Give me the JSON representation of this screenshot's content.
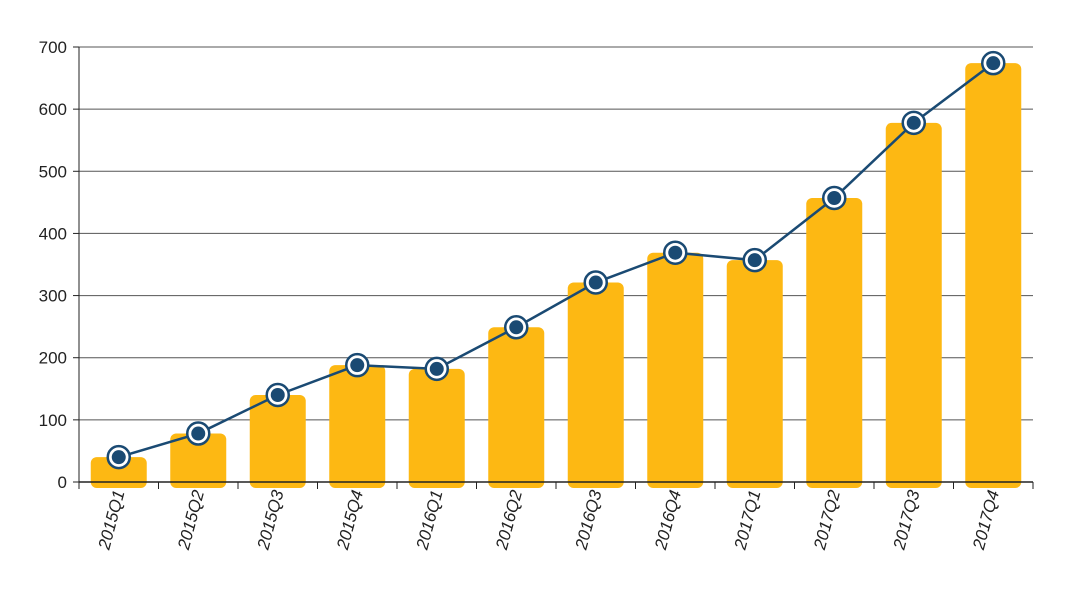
{
  "chart_data": {
    "type": "bar",
    "categories": [
      "2015Q1",
      "2015Q2",
      "2015Q3",
      "2015Q4",
      "2016Q1",
      "2016Q2",
      "2016Q3",
      "2016Q4",
      "2017Q1",
      "2017Q2",
      "2017Q3",
      "2017Q4"
    ],
    "series": [
      {
        "type": "bar",
        "values": [
          40,
          78,
          140,
          188,
          182,
          249,
          321,
          369,
          357,
          457,
          578,
          674
        ]
      },
      {
        "type": "line",
        "values": [
          40,
          78,
          140,
          188,
          182,
          249,
          321,
          369,
          357,
          457,
          578,
          674
        ]
      }
    ],
    "title": "",
    "xlabel": "",
    "ylabel": "",
    "ylim": [
      0,
      700
    ],
    "yticks": [
      "0",
      "100",
      "200",
      "300",
      "400",
      "500",
      "600",
      "700"
    ],
    "grid": true,
    "legend": "none",
    "colors": {
      "bar": "#FDB813",
      "line": "#1A4A73",
      "marker_fill": "#1A4A73",
      "marker_ring": "#1A4A73",
      "grid": "#555555",
      "axis": "#222222"
    }
  }
}
